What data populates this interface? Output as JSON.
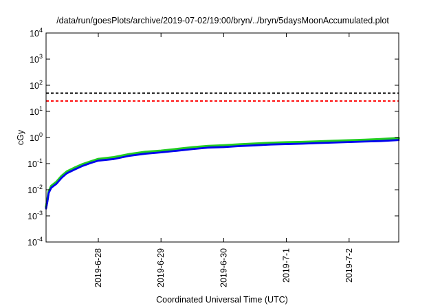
{
  "chart_data": {
    "type": "line",
    "title": "/data/run/goesPlots/archive/2019-07-02/19:00/bryn/../bryn/5daysMoonAccumulated.plot",
    "xlabel": "Coordinated Universal Time (UTC)",
    "ylabel": "cGy",
    "yscale": "log",
    "ylim": [
      0.0001,
      10000
    ],
    "yticks": [
      {
        "base": "10",
        "exp": "-4",
        "value": 0.0001
      },
      {
        "base": "10",
        "exp": "-3",
        "value": 0.001
      },
      {
        "base": "10",
        "exp": "-2",
        "value": 0.01
      },
      {
        "base": "10",
        "exp": "-1",
        "value": 0.1
      },
      {
        "base": "10",
        "exp": "0",
        "value": 1
      },
      {
        "base": "10",
        "exp": "1",
        "value": 10
      },
      {
        "base": "10",
        "exp": "2",
        "value": 100
      },
      {
        "base": "10",
        "exp": "3",
        "value": 1000
      },
      {
        "base": "10",
        "exp": "4",
        "value": 10000
      }
    ],
    "xlim": [
      "2019-06-27 04:00",
      "2019-07-02 19:00"
    ],
    "xticks": [
      {
        "label": "2019-6-28",
        "value": "2019-06-28 00:00"
      },
      {
        "label": "2019-6-29",
        "value": "2019-06-29 00:00"
      },
      {
        "label": "2019-6-30",
        "value": "2019-06-30 00:00"
      },
      {
        "label": "2019-7-1",
        "value": "2019-07-01 00:00"
      },
      {
        "label": "2019-7-2",
        "value": "2019-07-02 00:00"
      }
    ],
    "grid": false,
    "legend": "none",
    "reference_lines": [
      {
        "value": 50,
        "color": "#000000",
        "style": "dashed"
      },
      {
        "value": 25,
        "color": "#ff0000",
        "style": "dashed"
      }
    ],
    "series": [
      {
        "color": "#22cc22",
        "x": [
          "2019-06-27 04:00",
          "2019-06-27 04:30",
          "2019-06-27 05:00",
          "2019-06-27 06:00",
          "2019-06-27 08:00",
          "2019-06-27 10:00",
          "2019-06-27 12:00",
          "2019-06-27 15:00",
          "2019-06-27 18:00",
          "2019-06-27 21:00",
          "2019-06-28 00:00",
          "2019-06-28 06:00",
          "2019-06-28 12:00",
          "2019-06-28 18:00",
          "2019-06-29 00:00",
          "2019-06-29 06:00",
          "2019-06-29 12:00",
          "2019-06-29 18:00",
          "2019-06-30 00:00",
          "2019-06-30 06:00",
          "2019-06-30 12:00",
          "2019-06-30 18:00",
          "2019-07-01 00:00",
          "2019-07-01 06:00",
          "2019-07-01 12:00",
          "2019-07-01 18:00",
          "2019-07-02 00:00",
          "2019-07-02 06:00",
          "2019-07-02 12:00",
          "2019-07-02 19:00"
        ],
        "y": [
          0.0022,
          0.004,
          0.0085,
          0.014,
          0.02,
          0.034,
          0.05,
          0.07,
          0.095,
          0.12,
          0.15,
          0.175,
          0.23,
          0.28,
          0.31,
          0.36,
          0.42,
          0.47,
          0.5,
          0.54,
          0.58,
          0.62,
          0.65,
          0.67,
          0.7,
          0.74,
          0.77,
          0.81,
          0.86,
          0.95
        ]
      },
      {
        "color": "#0000ee",
        "x": [
          "2019-06-27 04:00",
          "2019-06-27 04:30",
          "2019-06-27 05:00",
          "2019-06-27 06:00",
          "2019-06-27 08:00",
          "2019-06-27 10:00",
          "2019-06-27 12:00",
          "2019-06-27 15:00",
          "2019-06-27 18:00",
          "2019-06-27 21:00",
          "2019-06-28 00:00",
          "2019-06-28 06:00",
          "2019-06-28 12:00",
          "2019-06-28 18:00",
          "2019-06-29 00:00",
          "2019-06-29 06:00",
          "2019-06-29 12:00",
          "2019-06-29 18:00",
          "2019-06-30 00:00",
          "2019-06-30 06:00",
          "2019-06-30 12:00",
          "2019-06-30 18:00",
          "2019-07-01 00:00",
          "2019-07-01 06:00",
          "2019-07-01 12:00",
          "2019-07-01 18:00",
          "2019-07-02 00:00",
          "2019-07-02 06:00",
          "2019-07-02 12:00",
          "2019-07-02 19:00"
        ],
        "y": [
          0.0019,
          0.0035,
          0.0075,
          0.012,
          0.017,
          0.029,
          0.043,
          0.06,
          0.082,
          0.105,
          0.13,
          0.15,
          0.2,
          0.24,
          0.27,
          0.31,
          0.36,
          0.41,
          0.43,
          0.47,
          0.5,
          0.54,
          0.56,
          0.58,
          0.61,
          0.64,
          0.67,
          0.7,
          0.73,
          0.8
        ]
      }
    ]
  }
}
